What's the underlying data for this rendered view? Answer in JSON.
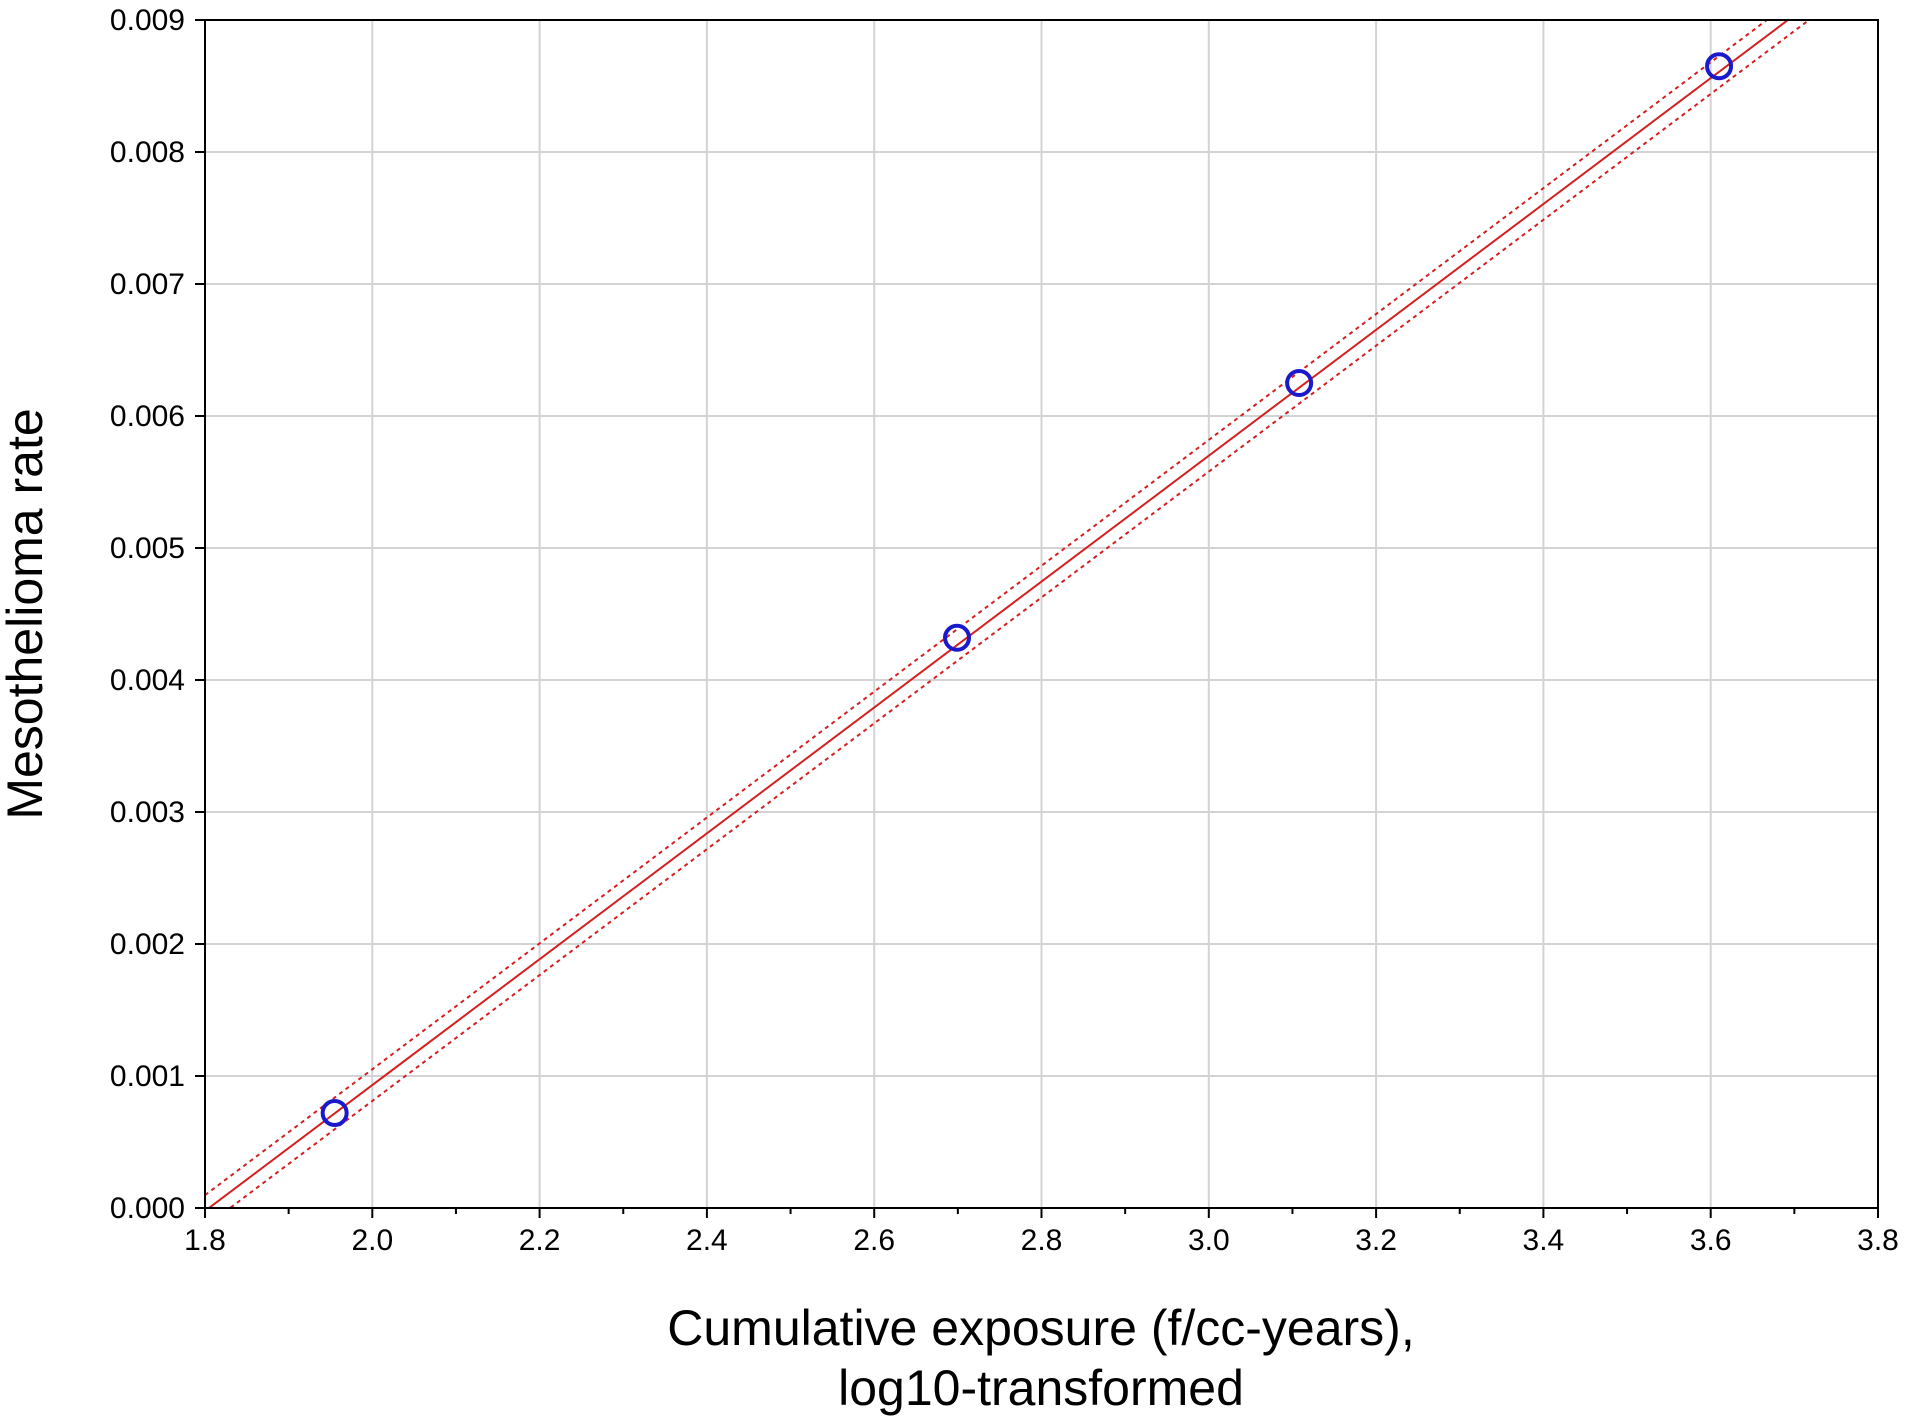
{
  "chart_data": {
    "type": "scatter",
    "xlabel_lines": [
      "Cumulative exposure (f/cc-years),",
      "log10-transformed"
    ],
    "ylabel": "Mesothelioma rate",
    "xlim": [
      1.8,
      3.8
    ],
    "ylim": [
      0.0,
      0.009
    ],
    "x_ticks": [
      1.8,
      2.0,
      2.2,
      2.4,
      2.6,
      2.8,
      3.0,
      3.2,
      3.4,
      3.6,
      3.8
    ],
    "x_tick_labels": [
      "1.8",
      "2.0",
      "2.2",
      "2.4",
      "2.6",
      "2.8",
      "3.0",
      "3.2",
      "3.4",
      "3.6",
      "3.8"
    ],
    "x_minor_ticks": [
      1.9,
      2.1,
      2.3,
      2.5,
      2.7,
      2.9,
      3.1,
      3.3,
      3.5,
      3.7
    ],
    "y_ticks": [
      0.0,
      0.001,
      0.002,
      0.003,
      0.004,
      0.005,
      0.006,
      0.007,
      0.008,
      0.009
    ],
    "y_tick_labels": [
      "0.000",
      "0.001",
      "0.002",
      "0.003",
      "0.004",
      "0.005",
      "0.006",
      "0.007",
      "0.008",
      "0.009"
    ],
    "grid": true,
    "points": [
      {
        "x": 1.955,
        "y": 0.00072
      },
      {
        "x": 2.699,
        "y": 0.00432
      },
      {
        "x": 3.108,
        "y": 0.00625
      },
      {
        "x": 3.61,
        "y": 0.00865
      }
    ],
    "fit_line": {
      "slope": 0.004768,
      "intercept": -0.008605
    },
    "confidence_band": {
      "half_width": 0.00012
    }
  },
  "colors": {
    "points": "#1a1acc",
    "fit_line": "#d42020",
    "grid": "#d3d3d3",
    "axis": "#000000"
  }
}
